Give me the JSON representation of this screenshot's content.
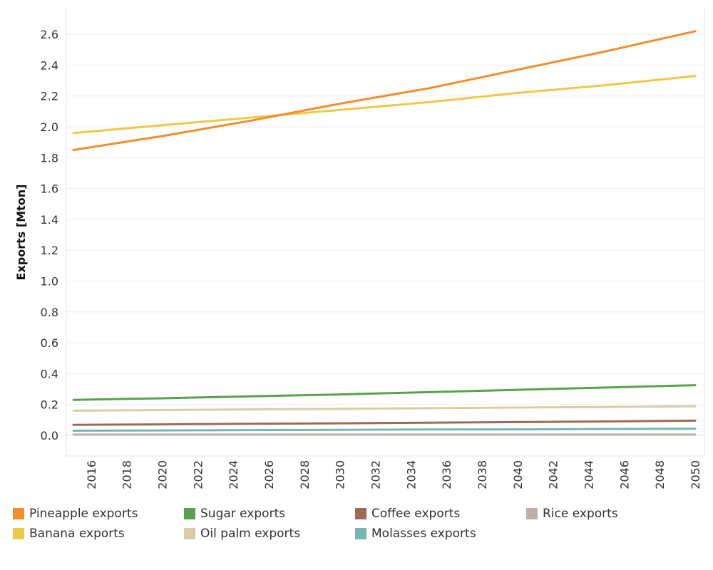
{
  "chart_data": {
    "type": "line",
    "title": "",
    "xlabel": "",
    "ylabel": "Exports [Mton]",
    "x": [
      2015,
      2050
    ],
    "xlim": [
      2015,
      2050
    ],
    "ylim": [
      -0.05,
      2.75
    ],
    "xticks": [
      "2016",
      "2018",
      "2020",
      "2022",
      "2024",
      "2026",
      "2028",
      "2030",
      "2032",
      "2034",
      "2036",
      "2038",
      "2040",
      "2042",
      "2044",
      "2046",
      "2048",
      "2050"
    ],
    "yticks": [
      "0.0",
      "0.2",
      "0.4",
      "0.6",
      "0.8",
      "1.0",
      "1.2",
      "1.4",
      "1.6",
      "1.8",
      "2.0",
      "2.2",
      "2.4",
      "2.6"
    ],
    "grid": true,
    "legend_position": "bottom",
    "series": [
      {
        "name": "Pineapple exports",
        "color": "#f28e2b",
        "points": [
          [
            2015,
            1.85
          ],
          [
            2020,
            1.94
          ],
          [
            2025,
            2.04
          ],
          [
            2030,
            2.15
          ],
          [
            2035,
            2.25
          ],
          [
            2040,
            2.37
          ],
          [
            2045,
            2.49
          ],
          [
            2050,
            2.62
          ]
        ]
      },
      {
        "name": "Banana exports",
        "color": "#edc948",
        "points": [
          [
            2015,
            1.96
          ],
          [
            2020,
            2.01
          ],
          [
            2025,
            2.06
          ],
          [
            2030,
            2.11
          ],
          [
            2035,
            2.16
          ],
          [
            2040,
            2.22
          ],
          [
            2045,
            2.27
          ],
          [
            2050,
            2.33
          ]
        ]
      },
      {
        "name": "Sugar exports",
        "color": "#59a14f",
        "points": [
          [
            2015,
            0.23
          ],
          [
            2020,
            0.24
          ],
          [
            2025,
            0.253
          ],
          [
            2030,
            0.265
          ],
          [
            2035,
            0.28
          ],
          [
            2040,
            0.295
          ],
          [
            2045,
            0.31
          ],
          [
            2050,
            0.325
          ]
        ]
      },
      {
        "name": "Oil palm exports",
        "color": "#d7cfa3",
        "points": [
          [
            2015,
            0.16
          ],
          [
            2020,
            0.164
          ],
          [
            2025,
            0.168
          ],
          [
            2030,
            0.172
          ],
          [
            2035,
            0.176
          ],
          [
            2040,
            0.18
          ],
          [
            2045,
            0.184
          ],
          [
            2050,
            0.188
          ]
        ]
      },
      {
        "name": "Coffee exports",
        "color": "#9c6b57",
        "points": [
          [
            2015,
            0.068
          ],
          [
            2020,
            0.071
          ],
          [
            2025,
            0.075
          ],
          [
            2030,
            0.078
          ],
          [
            2035,
            0.082
          ],
          [
            2040,
            0.086
          ],
          [
            2045,
            0.09
          ],
          [
            2050,
            0.095
          ]
        ]
      },
      {
        "name": "Molasses exports",
        "color": "#76b7b2",
        "points": [
          [
            2015,
            0.03
          ],
          [
            2020,
            0.032
          ],
          [
            2025,
            0.034
          ],
          [
            2030,
            0.036
          ],
          [
            2035,
            0.038
          ],
          [
            2040,
            0.039
          ],
          [
            2045,
            0.041
          ],
          [
            2050,
            0.043
          ]
        ]
      },
      {
        "name": "Rice exports",
        "color": "#bab0ac",
        "points": [
          [
            2015,
            0.005
          ],
          [
            2020,
            0.005
          ],
          [
            2025,
            0.005
          ],
          [
            2030,
            0.005
          ],
          [
            2035,
            0.005
          ],
          [
            2040,
            0.005
          ],
          [
            2045,
            0.005
          ],
          [
            2050,
            0.005
          ]
        ]
      }
    ]
  },
  "legend": {
    "items": [
      {
        "label": "Pineapple exports",
        "color": "#f28e2b"
      },
      {
        "label": "Sugar exports",
        "color": "#59a14f"
      },
      {
        "label": "Coffee exports",
        "color": "#9c6b57"
      },
      {
        "label": "Rice exports",
        "color": "#bab0ac"
      },
      {
        "label": "Banana exports",
        "color": "#edc948"
      },
      {
        "label": "Oil palm exports",
        "color": "#d7cfa3"
      },
      {
        "label": "Molasses exports",
        "color": "#76b7b2"
      }
    ]
  }
}
